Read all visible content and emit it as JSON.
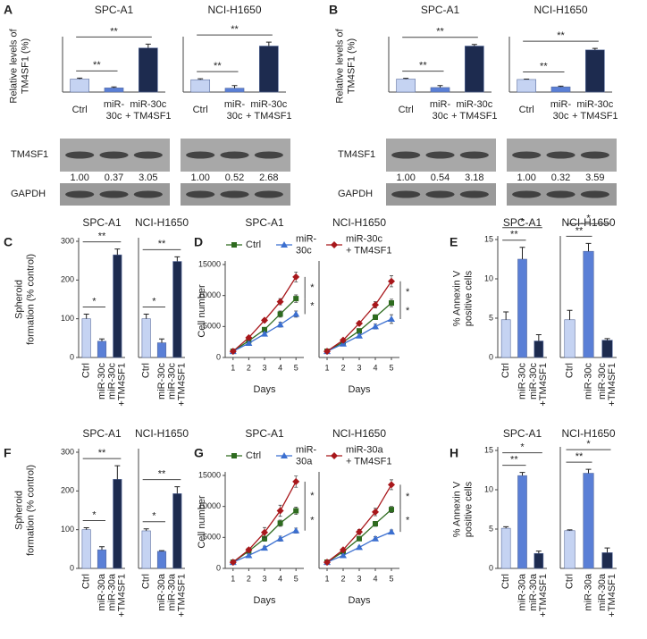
{
  "panel_labels": [
    "A",
    "B",
    "C",
    "D",
    "E",
    "F",
    "G",
    "H"
  ],
  "blots": [
    {
      "labels": [
        "TM4SF1",
        "GAPDH"
      ],
      "quantification": [
        [
          "1.00",
          "0.37",
          "3.05"
        ],
        [
          "1.00",
          "0.52",
          "2.68"
        ]
      ]
    },
    {
      "labels": [
        "TM4SF1",
        "GAPDH"
      ],
      "quantification": [
        [
          "1.00",
          "0.54",
          "3.18"
        ],
        [
          "1.00",
          "0.32",
          "3.59"
        ]
      ]
    }
  ],
  "chart_data": [
    {
      "type": "bar",
      "title": "SPC-A1",
      "ylabel": [
        "Relative levels of",
        "TM4SF1 (%)"
      ],
      "categories": [
        [
          "Ctrl"
        ],
        [
          "miR-",
          "30c"
        ],
        [
          "miR-30c",
          "+ TM4SF1"
        ]
      ],
      "values": [
        100,
        32,
        340
      ],
      "errors": [
        8,
        8,
        30
      ],
      "colors": [
        "#c5d3f2",
        "#5a7fd6",
        "#1d2b4f"
      ],
      "ylim": [
        0,
        400
      ],
      "significance": [
        {
          "label": "**",
          "pair": [
            0,
            1
          ]
        },
        {
          "label": "**",
          "pair": [
            0,
            2
          ]
        }
      ]
    },
    {
      "type": "bar",
      "title": "NCI-H1650",
      "categories": [
        [
          "Ctrl"
        ],
        [
          "miR-",
          "30c"
        ],
        [
          "miR-30c",
          "+ TM4SF1"
        ]
      ],
      "values": [
        95,
        30,
        355
      ],
      "errors": [
        8,
        20,
        30
      ],
      "colors": [
        "#c5d3f2",
        "#5a7fd6",
        "#1d2b4f"
      ],
      "ylim": [
        0,
        400
      ],
      "significance": [
        {
          "label": "**",
          "pair": [
            0,
            1
          ]
        },
        {
          "label": "**",
          "pair": [
            0,
            2
          ]
        }
      ]
    },
    {
      "type": "bar",
      "title": "SPC-A1",
      "ylabel": [
        "Relative levels of",
        "TM4SF1 (%)"
      ],
      "categories": [
        [
          "Ctrl"
        ],
        [
          "miR-",
          "30c"
        ],
        [
          "miR-30c",
          "+ TM4SF1"
        ]
      ],
      "values": [
        100,
        35,
        355
      ],
      "errors": [
        6,
        15,
        12
      ],
      "colors": [
        "#c5d3f2",
        "#5a7fd6",
        "#1d2b4f"
      ],
      "ylim": [
        0,
        400
      ],
      "significance": [
        {
          "label": "**",
          "pair": [
            0,
            1
          ]
        },
        {
          "label": "**",
          "pair": [
            0,
            2
          ]
        }
      ]
    },
    {
      "type": "bar",
      "title": "NCI-H1650",
      "categories": [
        [
          "Ctrl"
        ],
        [
          "miR-",
          "30c"
        ],
        [
          "miR-30c",
          "+ TM4SF1"
        ]
      ],
      "values": [
        97,
        40,
        325
      ],
      "errors": [
        3,
        6,
        12
      ],
      "colors": [
        "#c5d3f2",
        "#5a7fd6",
        "#1d2b4f"
      ],
      "ylim": [
        0,
        400
      ],
      "significance": [
        {
          "label": "**",
          "pair": [
            0,
            1
          ]
        },
        {
          "label": "**",
          "pair": [
            0,
            2
          ]
        }
      ]
    },
    {
      "type": "bar",
      "title": "SPC-A1",
      "ylabel": [
        "Spheroid",
        "formation (% control)"
      ],
      "categories": [
        [
          "Ctrl"
        ],
        [
          "miR-30c"
        ],
        [
          "miR-30c",
          "+TM4SF1"
        ]
      ],
      "values": [
        100,
        42,
        265
      ],
      "errors": [
        12,
        6,
        15
      ],
      "colors": [
        "#c5d3f2",
        "#5a7fd6",
        "#1d2b4f"
      ],
      "ylim": [
        0,
        300
      ],
      "yticks": [
        0,
        100,
        200,
        300
      ],
      "significance": [
        {
          "label": "*",
          "pair": [
            0,
            1
          ]
        },
        {
          "label": "**",
          "pair": [
            0,
            2
          ]
        }
      ]
    },
    {
      "type": "bar",
      "title": "NCI-H1650",
      "categories": [
        [
          "Ctrl"
        ],
        [
          "miR-30c"
        ],
        [
          "miR-30c",
          "+TM4SF1"
        ]
      ],
      "values": [
        100,
        38,
        248
      ],
      "errors": [
        12,
        10,
        12
      ],
      "colors": [
        "#c5d3f2",
        "#5a7fd6",
        "#1d2b4f"
      ],
      "ylim": [
        0,
        300
      ],
      "significance": [
        {
          "label": "*",
          "pair": [
            0,
            1
          ]
        },
        {
          "label": "**",
          "pair": [
            0,
            2
          ]
        }
      ]
    },
    {
      "type": "line",
      "title": "SPC-A1",
      "ylabel": "Cell number",
      "xlabel": "Days",
      "x": [
        1,
        2,
        3,
        4,
        5
      ],
      "xlim": [
        0.5,
        5.5
      ],
      "xticks": [
        1,
        2,
        3,
        4,
        5
      ],
      "ylim": [
        0,
        15000
      ],
      "yticks": [
        0,
        5000,
        10000,
        15000
      ],
      "series": [
        {
          "name": [
            "Ctrl"
          ],
          "color": "#2e6b1f",
          "marker": "square",
          "values": [
            1000,
            2700,
            4500,
            7000,
            9500
          ],
          "errors": [
            100,
            200,
            300,
            500,
            600
          ]
        },
        {
          "name": [
            "miR-",
            "30c"
          ],
          "color": "#3b6fd0",
          "marker": "triangle",
          "values": [
            1000,
            2300,
            3800,
            5300,
            7000
          ],
          "errors": [
            100,
            200,
            300,
            400,
            500
          ]
        },
        {
          "name": [
            "miR-30c",
            "+ TM4SF1"
          ],
          "color": "#a8171b",
          "marker": "diamond",
          "values": [
            1000,
            3200,
            6000,
            9000,
            13000
          ],
          "errors": [
            100,
            200,
            300,
            500,
            800
          ]
        }
      ],
      "significance": [
        {
          "label": "*",
          "pair": [
            2,
            0
          ]
        },
        {
          "label": "*",
          "pair": [
            0,
            1
          ]
        }
      ]
    },
    {
      "type": "line",
      "title": "NCI-H1650",
      "xlabel": "Days",
      "x": [
        1,
        2,
        3,
        4,
        5
      ],
      "xlim": [
        0.5,
        5.5
      ],
      "xticks": [
        1,
        2,
        3,
        4,
        5
      ],
      "ylim": [
        0,
        15000
      ],
      "series": [
        {
          "color": "#2e6b1f",
          "marker": "square",
          "values": [
            1000,
            2500,
            4300,
            6500,
            8800
          ],
          "errors": [
            100,
            200,
            300,
            400,
            600
          ]
        },
        {
          "color": "#3b6fd0",
          "marker": "triangle",
          "values": [
            1000,
            2200,
            3500,
            5000,
            6200
          ],
          "errors": [
            100,
            200,
            300,
            400,
            700
          ]
        },
        {
          "color": "#a8171b",
          "marker": "diamond",
          "values": [
            1000,
            2800,
            5500,
            8500,
            12300
          ],
          "errors": [
            100,
            200,
            300,
            500,
            900
          ]
        }
      ],
      "significance": [
        {
          "label": "*",
          "pair": [
            2,
            0
          ]
        },
        {
          "label": "*",
          "pair": [
            0,
            1
          ]
        }
      ]
    },
    {
      "type": "bar",
      "title": "SPC-A1",
      "ylabel": [
        "% Annexin V",
        "positive cells"
      ],
      "categories": [
        [
          "Ctrl"
        ],
        [
          "miR-30c"
        ],
        [
          "miR-30c",
          "+TM4SF1"
        ]
      ],
      "values": [
        4.8,
        12.5,
        2.1
      ],
      "errors": [
        1,
        1.5,
        0.8
      ],
      "colors": [
        "#c5d3f2",
        "#5a7fd6",
        "#1d2b4f"
      ],
      "ylim": [
        0,
        15
      ],
      "yticks": [
        0,
        5,
        10,
        15
      ],
      "significance": [
        {
          "label": "**",
          "pair": [
            0,
            1
          ]
        },
        {
          "label": "*",
          "pair": [
            0,
            2
          ]
        }
      ]
    },
    {
      "type": "bar",
      "title": "NCI-H1650",
      "categories": [
        [
          "Ctrl"
        ],
        [
          "miR-30c"
        ],
        [
          "miR-30c",
          "+TM4SF1"
        ]
      ],
      "values": [
        4.8,
        13.5,
        2.2
      ],
      "errors": [
        1.2,
        1,
        0.2
      ],
      "colors": [
        "#c5d3f2",
        "#5a7fd6",
        "#1d2b4f"
      ],
      "ylim": [
        0,
        15
      ],
      "significance": [
        {
          "label": "**",
          "pair": [
            0,
            1
          ]
        },
        {
          "label": "*",
          "pair": [
            0,
            2
          ]
        }
      ]
    },
    {
      "type": "bar",
      "title": "SPC-A1",
      "ylabel": [
        "Spheroid",
        "formation (% control)"
      ],
      "categories": [
        [
          "Ctrl"
        ],
        [
          "miR-30a"
        ],
        [
          "miR-30a",
          "+TM4SF1"
        ]
      ],
      "values": [
        100,
        48,
        230
      ],
      "errors": [
        5,
        8,
        35
      ],
      "colors": [
        "#c5d3f2",
        "#5a7fd6",
        "#1d2b4f"
      ],
      "ylim": [
        0,
        300
      ],
      "yticks": [
        0,
        100,
        200,
        300
      ],
      "significance": [
        {
          "label": "*",
          "pair": [
            0,
            1
          ]
        },
        {
          "label": "**",
          "pair": [
            0,
            2
          ]
        }
      ]
    },
    {
      "type": "bar",
      "title": "NCI-H1650",
      "categories": [
        [
          "Ctrl"
        ],
        [
          "miR-30a"
        ],
        [
          "miR-30a",
          "+TM4SF1"
        ]
      ],
      "values": [
        97,
        44,
        193
      ],
      "errors": [
        5,
        2,
        18
      ],
      "colors": [
        "#c5d3f2",
        "#5a7fd6",
        "#1d2b4f"
      ],
      "ylim": [
        0,
        300
      ],
      "significance": [
        {
          "label": "*",
          "pair": [
            0,
            1
          ]
        },
        {
          "label": "**",
          "pair": [
            0,
            2
          ]
        }
      ]
    },
    {
      "type": "line",
      "title": "SPC-A1",
      "ylabel": "Cell number",
      "xlabel": "Days",
      "x": [
        1,
        2,
        3,
        4,
        5
      ],
      "xlim": [
        0.5,
        5.5
      ],
      "xticks": [
        1,
        2,
        3,
        4,
        5
      ],
      "ylim": [
        0,
        15000
      ],
      "yticks": [
        0,
        5000,
        10000,
        15000
      ],
      "series": [
        {
          "name": [
            "Ctrl"
          ],
          "color": "#2e6b1f",
          "marker": "square",
          "values": [
            1000,
            2800,
            4800,
            7300,
            9300
          ],
          "errors": [
            100,
            300,
            400,
            500,
            600
          ]
        },
        {
          "name": [
            "miR-",
            "30a"
          ],
          "color": "#3b6fd0",
          "marker": "triangle",
          "values": [
            1000,
            2100,
            3300,
            4800,
            6100
          ],
          "errors": [
            100,
            200,
            300,
            400,
            400
          ]
        },
        {
          "name": [
            "miR-30a",
            "+ TM4SF1"
          ],
          "color": "#a8171b",
          "marker": "diamond",
          "values": [
            1000,
            3000,
            5800,
            9300,
            14000
          ],
          "errors": [
            100,
            300,
            800,
            900,
            900
          ]
        }
      ],
      "significance": [
        {
          "label": "*",
          "pair": [
            2,
            0
          ]
        },
        {
          "label": "*",
          "pair": [
            0,
            1
          ]
        }
      ]
    },
    {
      "type": "line",
      "title": "NCI-H1650",
      "xlabel": "Days",
      "x": [
        1,
        2,
        3,
        4,
        5
      ],
      "xlim": [
        0.5,
        5.5
      ],
      "xticks": [
        1,
        2,
        3,
        4,
        5
      ],
      "ylim": [
        0,
        15000
      ],
      "series": [
        {
          "color": "#2e6b1f",
          "marker": "square",
          "values": [
            1000,
            2700,
            4800,
            7200,
            9500
          ],
          "errors": [
            100,
            200,
            300,
            400,
            500
          ]
        },
        {
          "color": "#3b6fd0",
          "marker": "triangle",
          "values": [
            1000,
            2100,
            3400,
            4800,
            5900
          ],
          "errors": [
            100,
            200,
            200,
            300,
            300
          ]
        },
        {
          "color": "#a8171b",
          "marker": "diamond",
          "values": [
            1000,
            3000,
            5900,
            9100,
            13500
          ],
          "errors": [
            100,
            200,
            400,
            600,
            800
          ]
        }
      ],
      "significance": [
        {
          "label": "*",
          "pair": [
            2,
            0
          ]
        },
        {
          "label": "*",
          "pair": [
            0,
            1
          ]
        }
      ]
    },
    {
      "type": "bar",
      "title": "SPC-A1",
      "ylabel": [
        "% Annexin V",
        "positive cells"
      ],
      "categories": [
        [
          "Ctrl"
        ],
        [
          "miR-30a"
        ],
        [
          "miR-30a",
          "+TM4SF1"
        ]
      ],
      "values": [
        5.1,
        11.8,
        1.9
      ],
      "errors": [
        0.2,
        0.4,
        0.3
      ],
      "colors": [
        "#c5d3f2",
        "#5a7fd6",
        "#1d2b4f"
      ],
      "ylim": [
        0,
        15
      ],
      "yticks": [
        0,
        5,
        10,
        15
      ],
      "significance": [
        {
          "label": "**",
          "pair": [
            0,
            1
          ]
        },
        {
          "label": "*",
          "pair": [
            0,
            2
          ]
        }
      ]
    },
    {
      "type": "bar",
      "title": "NCI-H1650",
      "categories": [
        [
          "Ctrl"
        ],
        [
          "miR-30a"
        ],
        [
          "miR-30a",
          "+TM4SF1"
        ]
      ],
      "values": [
        4.8,
        12.1,
        2.0
      ],
      "errors": [
        0.1,
        0.5,
        0.6
      ],
      "colors": [
        "#c5d3f2",
        "#5a7fd6",
        "#1d2b4f"
      ],
      "ylim": [
        0,
        15
      ],
      "significance": [
        {
          "label": "**",
          "pair": [
            0,
            1
          ]
        },
        {
          "label": "*",
          "pair": [
            0,
            2
          ]
        }
      ]
    }
  ]
}
